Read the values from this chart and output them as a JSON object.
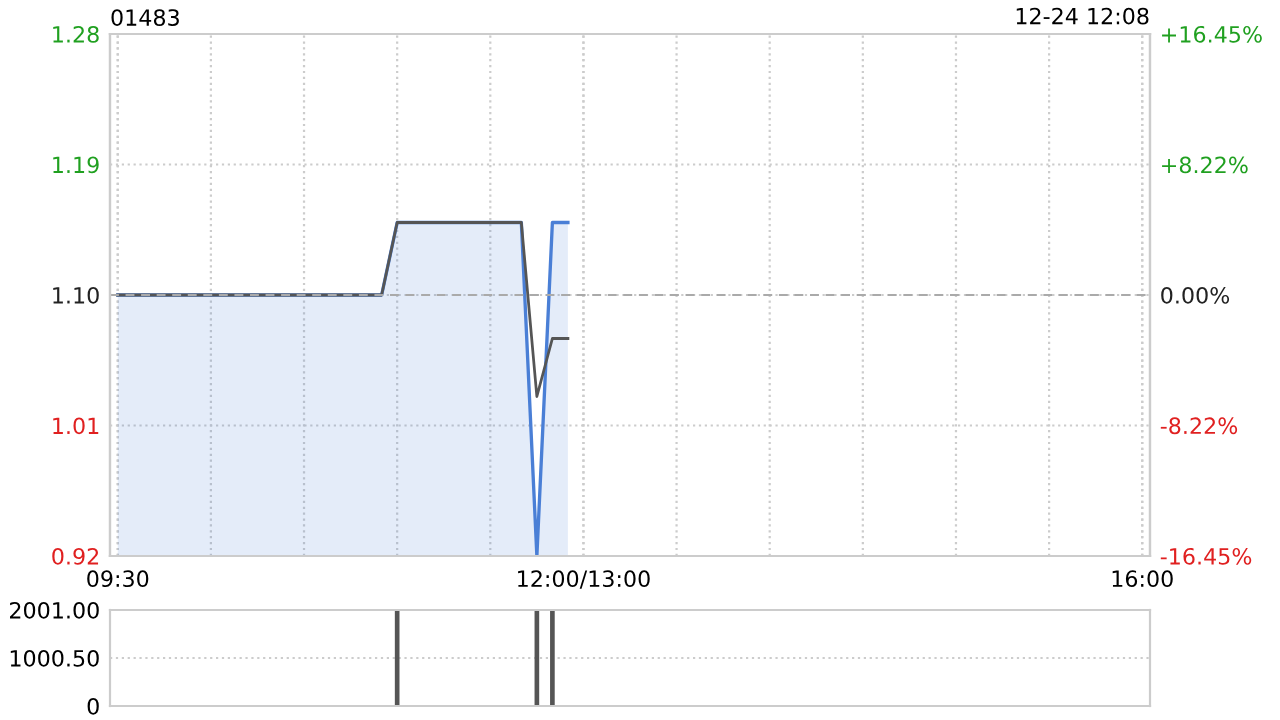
{
  "chart_data": [
    {
      "type": "line",
      "title": "01483",
      "annotations": [
        "12-24 12:08"
      ],
      "categories": [
        "09:30",
        null,
        null,
        null,
        null,
        null,
        null,
        null,
        null,
        null,
        null,
        null,
        null,
        null,
        null,
        null,
        null,
        null,
        null,
        null,
        null,
        null,
        null,
        null,
        null,
        null,
        null,
        null,
        null,
        null,
        "12:00/13:00",
        null,
        null,
        null,
        null,
        null,
        null,
        null,
        null,
        null,
        null,
        null,
        null,
        null,
        null,
        null,
        null,
        null,
        null,
        null,
        null,
        null,
        null,
        null,
        null,
        null,
        null,
        null,
        null,
        null,
        null,
        null,
        null,
        null,
        null,
        null,
        "16:00"
      ],
      "series": [
        {
          "type": "area",
          "color": "#4a7fd6",
          "values": [
            1.1,
            1.1,
            1.1,
            1.1,
            1.1,
            1.1,
            1.1,
            1.1,
            1.1,
            1.1,
            1.1,
            1.1,
            1.1,
            1.1,
            1.1,
            1.1,
            1.1,
            1.1,
            1.15,
            1.15,
            1.15,
            1.15,
            1.15,
            1.15,
            1.15,
            1.15,
            1.15,
            0.92,
            1.15,
            1.15,
            null,
            null,
            null,
            null,
            null,
            null,
            null,
            null,
            null,
            null,
            null,
            null,
            null,
            null,
            null,
            null,
            null,
            null,
            null,
            null,
            null,
            null,
            null,
            null,
            null,
            null,
            null,
            null,
            null,
            null,
            null,
            null,
            null,
            null,
            null,
            null,
            null
          ]
        },
        {
          "type": "line",
          "color": "#555555",
          "values": [
            1.1,
            1.1,
            1.1,
            1.1,
            1.1,
            1.1,
            1.1,
            1.1,
            1.1,
            1.1,
            1.1,
            1.1,
            1.1,
            1.1,
            1.1,
            1.1,
            1.1,
            1.1,
            1.15,
            1.15,
            1.15,
            1.15,
            1.15,
            1.15,
            1.15,
            1.15,
            1.15,
            1.03,
            1.07,
            1.07,
            null,
            null,
            null,
            null,
            null,
            null,
            null,
            null,
            null,
            null,
            null,
            null,
            null,
            null,
            null,
            null,
            null,
            null,
            null,
            null,
            null,
            null,
            null,
            null,
            null,
            null,
            null,
            null,
            null,
            null,
            null,
            null,
            null,
            null,
            null,
            null,
            null
          ]
        }
      ],
      "ylim": [
        0.92,
        1.28
      ],
      "yticks": [
        {
          "value": 0.92,
          "label": "0.92"
        },
        {
          "value": 1.01,
          "label": "1.01"
        },
        {
          "value": 1.1,
          "label": "1.10"
        },
        {
          "value": 1.19,
          "label": "1.19"
        },
        {
          "value": 1.28,
          "label": "1.28"
        }
      ],
      "y2lim": [
        -16.45,
        16.45
      ],
      "y2ticks": [
        {
          "value": -16.45,
          "label": "-16.45%"
        },
        {
          "value": -8.22,
          "label": "-8.22%"
        },
        {
          "value": 0,
          "label": "0.00%"
        },
        {
          "value": 8.22,
          "label": "+8.22%"
        },
        {
          "value": 16.45,
          "label": "+16.45%"
        }
      ],
      "ref_lines": [
        {
          "axis": "y",
          "value": 1.1,
          "color": "#aaaaaa",
          "line_style": "dashed"
        }
      ],
      "grid": true,
      "line_style": "solid",
      "marker": "none"
    },
    {
      "type": "bar",
      "categories": [
        null,
        null,
        null,
        null,
        null,
        null,
        null,
        null,
        null,
        null,
        null,
        null,
        null,
        null,
        null,
        null,
        null,
        null,
        null,
        null,
        null,
        null,
        null,
        null,
        null,
        null,
        null,
        null,
        null,
        null,
        null,
        null,
        null,
        null,
        null,
        null,
        null,
        null,
        null,
        null,
        null,
        null,
        null,
        null,
        null,
        null,
        null,
        null,
        null,
        null,
        null,
        null,
        null,
        null,
        null,
        null,
        null,
        null,
        null,
        null,
        null,
        null,
        null,
        null,
        null,
        null,
        null
      ],
      "values": [
        null,
        null,
        null,
        null,
        null,
        null,
        null,
        null,
        null,
        null,
        null,
        null,
        null,
        null,
        null,
        null,
        null,
        null,
        2000,
        null,
        null,
        null,
        null,
        null,
        null,
        null,
        null,
        2000,
        2000,
        null,
        null,
        null,
        null,
        null,
        null,
        null,
        null,
        null,
        null,
        null,
        null,
        null,
        null,
        null,
        null,
        null,
        null,
        null,
        null,
        null,
        null,
        null,
        null,
        null,
        null,
        null,
        null,
        null,
        null,
        null,
        null,
        null,
        null,
        null,
        null,
        null,
        null
      ],
      "color": "#555555",
      "ylim": [
        0,
        2001
      ],
      "yticks": [
        0,
        {
          "value": 1000.5,
          "label": "1000.50"
        },
        {
          "value": 2001,
          "label": "2001.00"
        }
      ],
      "grid": "y",
      "tick_labels": "y"
    }
  ]
}
